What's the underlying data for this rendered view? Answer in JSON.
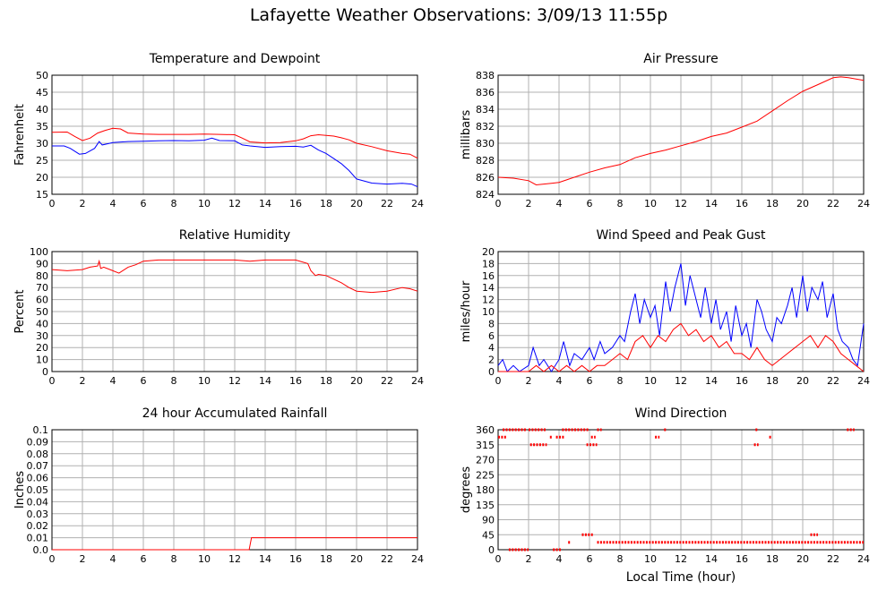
{
  "page_title": "Lafayette Weather Observations: 3/09/13 11:55p",
  "colors": {
    "red": "#ff0000",
    "blue": "#0000ff",
    "grid": "#b0b0b0"
  },
  "chart_data": [
    {
      "id": "temp",
      "type": "line",
      "title": "Temperature and Dewpoint",
      "ylabel": "Fahrenheit",
      "xlabel": "",
      "xlim": [
        0,
        24
      ],
      "ylim": [
        15,
        50
      ],
      "xticks": [
        "0",
        "2",
        "4",
        "6",
        "8",
        "10",
        "12",
        "14",
        "16",
        "18",
        "20",
        "22",
        "24"
      ],
      "yticks": [
        "15",
        "20",
        "25",
        "30",
        "35",
        "40",
        "45",
        "50"
      ],
      "series": [
        {
          "color": "#ff0000",
          "x": [
            0,
            1,
            1.5,
            2,
            2.5,
            3,
            3.5,
            4,
            4.5,
            5,
            6,
            7,
            8,
            9,
            10,
            11,
            12,
            12.5,
            13,
            14,
            15,
            16,
            16.5,
            17,
            17.5,
            18,
            18.5,
            19,
            19.5,
            20,
            21,
            22,
            23,
            23.5,
            24
          ],
          "y": [
            33.2,
            33.3,
            32,
            30.8,
            31.5,
            33,
            33.8,
            34.4,
            34.2,
            33,
            32.7,
            32.6,
            32.6,
            32.6,
            32.7,
            32.6,
            32.5,
            31.5,
            30.4,
            30.1,
            30.2,
            30.7,
            31.3,
            32.2,
            32.5,
            32.3,
            32.1,
            31.6,
            31,
            30,
            29,
            27.8,
            27,
            26.8,
            25.6
          ]
        },
        {
          "color": "#0000ff",
          "x": [
            0,
            0.8,
            1.2,
            1.8,
            2.2,
            2.8,
            3.1,
            3.3,
            4,
            5,
            6,
            7,
            8,
            9,
            10,
            10.5,
            11,
            12,
            12.5,
            13,
            14,
            15,
            16,
            16.5,
            17,
            17.5,
            18,
            18.5,
            19,
            19.5,
            20,
            21,
            22,
            23,
            23.6,
            24
          ],
          "y": [
            29.2,
            29.2,
            28.5,
            26.8,
            27,
            28.5,
            30.5,
            29.5,
            30.2,
            30.5,
            30.6,
            30.7,
            30.8,
            30.7,
            30.9,
            31.5,
            30.8,
            30.7,
            29.5,
            29.2,
            28.8,
            29,
            29.1,
            28.9,
            29.4,
            28,
            27,
            25.5,
            24,
            22,
            19.5,
            18.3,
            18,
            18.2,
            18,
            17.2
          ]
        }
      ]
    },
    {
      "id": "press",
      "type": "line",
      "title": "Air Pressure",
      "ylabel": "millibars",
      "xlabel": "",
      "xlim": [
        0,
        24
      ],
      "ylim": [
        824,
        838
      ],
      "xticks": [
        "0",
        "2",
        "4",
        "6",
        "8",
        "10",
        "12",
        "14",
        "16",
        "18",
        "20",
        "22",
        "24"
      ],
      "yticks": [
        "824",
        "826",
        "828",
        "830",
        "832",
        "834",
        "836",
        "838"
      ],
      "series": [
        {
          "color": "#ff0000",
          "x": [
            0,
            1,
            2,
            2.5,
            3,
            3.5,
            4,
            5,
            6,
            7,
            8,
            9,
            10,
            11,
            12,
            13,
            14,
            15,
            16,
            17,
            18,
            19,
            20,
            21,
            22,
            22.5,
            23,
            24
          ],
          "y": [
            826,
            825.9,
            825.6,
            825.1,
            825.2,
            825.3,
            825.4,
            826,
            826.6,
            827.1,
            827.5,
            828.3,
            828.8,
            829.2,
            829.7,
            830.2,
            830.8,
            831.2,
            831.9,
            832.6,
            833.8,
            835,
            836.1,
            836.9,
            837.7,
            837.8,
            837.7,
            837.4
          ]
        }
      ]
    },
    {
      "id": "rh",
      "type": "line",
      "title": "Relative Humidity",
      "ylabel": "Percent",
      "xlabel": "",
      "xlim": [
        0,
        24
      ],
      "ylim": [
        0,
        100
      ],
      "xticks": [
        "0",
        "2",
        "4",
        "6",
        "8",
        "10",
        "12",
        "14",
        "16",
        "18",
        "20",
        "22",
        "24"
      ],
      "yticks": [
        "0",
        "10",
        "20",
        "30",
        "40",
        "50",
        "60",
        "70",
        "80",
        "90",
        "100"
      ],
      "series": [
        {
          "color": "#ff0000",
          "x": [
            0,
            1,
            2,
            2.5,
            3,
            3.1,
            3.2,
            3.4,
            4,
            4.4,
            5,
            5.5,
            6,
            7,
            8,
            9,
            10,
            11,
            12,
            13,
            14,
            15,
            16,
            16.8,
            17,
            17.3,
            17.5,
            18,
            18.5,
            19,
            19.5,
            20,
            21,
            22,
            23,
            23.5,
            24
          ],
          "y": [
            85,
            84,
            85,
            87,
            88,
            92,
            86,
            87,
            84,
            82,
            87,
            89,
            92,
            93,
            93,
            93,
            93,
            93,
            93,
            92,
            93,
            93,
            93,
            90,
            84,
            80,
            81,
            80,
            77,
            74,
            70,
            67,
            66,
            67,
            70,
            69,
            67
          ]
        }
      ]
    },
    {
      "id": "wind",
      "type": "line",
      "title": "Wind Speed and Peak Gust",
      "ylabel": "miles/hour",
      "xlabel": "",
      "xlim": [
        0,
        24
      ],
      "ylim": [
        0,
        20
      ],
      "xticks": [
        "0",
        "2",
        "4",
        "6",
        "8",
        "10",
        "12",
        "14",
        "16",
        "18",
        "20",
        "22",
        "24"
      ],
      "yticks": [
        "0",
        "2",
        "4",
        "6",
        "8",
        "10",
        "12",
        "14",
        "16",
        "18",
        "20"
      ],
      "series": [
        {
          "color": "#0000ff",
          "x": [
            0,
            0.3,
            0.6,
            1,
            1.4,
            2,
            2.3,
            2.7,
            3,
            3.5,
            4,
            4.3,
            4.7,
            5,
            5.5,
            6,
            6.3,
            6.7,
            7,
            7.5,
            8,
            8.3,
            8.7,
            9,
            9.3,
            9.6,
            10,
            10.3,
            10.6,
            11,
            11.3,
            11.6,
            12,
            12.3,
            12.6,
            13,
            13.3,
            13.6,
            14,
            14.3,
            14.6,
            15,
            15.3,
            15.6,
            16,
            16.3,
            16.6,
            17,
            17.3,
            17.6,
            18,
            18.3,
            18.6,
            19,
            19.3,
            19.6,
            20,
            20.3,
            20.6,
            21,
            21.3,
            21.6,
            22,
            22.3,
            22.6,
            23,
            23.3,
            23.6,
            24
          ],
          "y": [
            1,
            2,
            0,
            1,
            0,
            1,
            4,
            1,
            2,
            0,
            2,
            5,
            1,
            3,
            2,
            4,
            2,
            5,
            3,
            4,
            6,
            5,
            10,
            13,
            8,
            12,
            9,
            11,
            6,
            15,
            10,
            14,
            18,
            11,
            16,
            12,
            9,
            14,
            8,
            12,
            7,
            10,
            5,
            11,
            6,
            8,
            4,
            12,
            10,
            7,
            5,
            9,
            8,
            11,
            14,
            9,
            16,
            10,
            14,
            12,
            15,
            9,
            13,
            7,
            5,
            4,
            2,
            1,
            8
          ]
        },
        {
          "color": "#ff0000",
          "x": [
            0,
            0.5,
            1,
            1.5,
            2,
            2.5,
            3,
            3.5,
            4,
            4.5,
            5,
            5.5,
            6,
            6.5,
            7,
            7.5,
            8,
            8.5,
            9,
            9.5,
            10,
            10.5,
            11,
            11.5,
            12,
            12.5,
            13,
            13.5,
            14,
            14.5,
            15,
            15.5,
            16,
            16.5,
            17,
            17.5,
            18,
            18.5,
            19,
            19.5,
            20,
            20.5,
            21,
            21.5,
            22,
            22.5,
            23,
            23.5,
            24
          ],
          "y": [
            0,
            0,
            0,
            0,
            0,
            1,
            0,
            1,
            0,
            1,
            0,
            1,
            0,
            1,
            1,
            2,
            3,
            2,
            5,
            6,
            4,
            6,
            5,
            7,
            8,
            6,
            7,
            5,
            6,
            4,
            5,
            3,
            3,
            2,
            4,
            2,
            1,
            2,
            3,
            4,
            5,
            6,
            4,
            6,
            5,
            3,
            2,
            1,
            0
          ]
        }
      ]
    },
    {
      "id": "rain",
      "type": "line",
      "title": "24 hour Accumulated Rainfall",
      "ylabel": "Inches",
      "xlabel": "",
      "xlim": [
        0,
        24
      ],
      "ylim": [
        0,
        0.1
      ],
      "xticks": [
        "0",
        "2",
        "4",
        "6",
        "8",
        "10",
        "12",
        "14",
        "16",
        "18",
        "20",
        "22",
        "24"
      ],
      "yticks": [
        "0.0",
        "0.01",
        "0.02",
        "0.03",
        "0.04",
        "0.05",
        "0.06",
        "0.07",
        "0.08",
        "0.09",
        "0.1"
      ],
      "series": [
        {
          "color": "#ff0000",
          "x": [
            0,
            12.95,
            13.1,
            24
          ],
          "y": [
            0,
            0,
            0.01,
            0.01
          ]
        }
      ]
    },
    {
      "id": "dir",
      "type": "scatter",
      "title": "Wind Direction",
      "ylabel": "degrees",
      "xlabel": "Local Time (hour)",
      "xlim": [
        0,
        24
      ],
      "ylim": [
        0,
        360
      ],
      "xticks": [
        "0",
        "2",
        "4",
        "6",
        "8",
        "10",
        "12",
        "14",
        "16",
        "18",
        "20",
        "22",
        "24"
      ],
      "yticks": [
        "0",
        "45",
        "90",
        "135",
        "180",
        "225",
        "270",
        "315",
        "360"
      ],
      "series": [
        {
          "color": "#ff0000",
          "segments": [
            [
              0,
              0.6,
              338
            ],
            [
              0.3,
              1.9,
              360
            ],
            [
              0.7,
              2,
              0
            ],
            [
              2,
              3.2,
              360
            ],
            [
              2.1,
              3.2,
              315
            ],
            [
              3.4,
              3.6,
              338
            ],
            [
              3.6,
              4.2,
              0
            ],
            [
              3.8,
              4.4,
              338
            ],
            [
              4.2,
              6,
              360
            ],
            [
              4.6,
              4.8,
              22
            ],
            [
              5.5,
              6.3,
              45
            ],
            [
              5.8,
              6.5,
              315
            ],
            [
              6.1,
              6.4,
              338
            ],
            [
              6.5,
              6.8,
              360
            ],
            [
              6.5,
              24,
              22
            ],
            [
              10.3,
              10.6,
              338
            ],
            [
              10.9,
              11.1,
              360
            ],
            [
              16.8,
              17.1,
              315
            ],
            [
              16.9,
              17.1,
              360
            ],
            [
              17.8,
              18,
              338
            ],
            [
              20.5,
              21,
              45
            ],
            [
              22.9,
              23.4,
              360
            ]
          ]
        }
      ]
    }
  ]
}
